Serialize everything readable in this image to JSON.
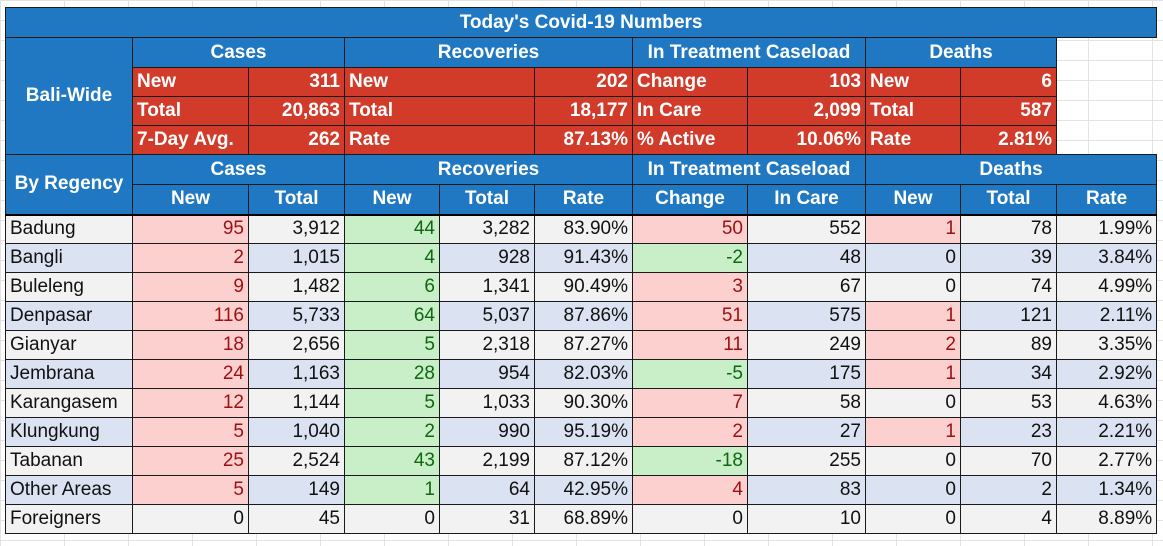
{
  "title": "Today's Covid-19 Numbers",
  "bali_wide": {
    "label": "Bali-Wide",
    "groups": [
      "Cases",
      "Recoveries",
      "In Treatment Caseload",
      "Deaths"
    ],
    "rows": [
      [
        [
          "New",
          "311"
        ],
        [
          "New",
          "202"
        ],
        [
          "Change",
          "103"
        ],
        [
          "New",
          "6"
        ]
      ],
      [
        [
          "Total",
          "20,863"
        ],
        [
          "Total",
          "18,177"
        ],
        [
          "In Care",
          "2,099"
        ],
        [
          "Total",
          "587"
        ]
      ],
      [
        [
          "7-Day Avg.",
          "262"
        ],
        [
          "Rate",
          "87.13%"
        ],
        [
          "% Active",
          "10.06%"
        ],
        [
          "Rate",
          "2.81%"
        ]
      ]
    ]
  },
  "by_regency": {
    "label": "By Regency",
    "groups": [
      "Cases",
      "Recoveries",
      "In Treatment Caseload",
      "Deaths"
    ],
    "columns": [
      "New",
      "Total",
      "New",
      "Total",
      "Rate",
      "Change",
      "In Care",
      "New",
      "Total",
      "Rate"
    ],
    "rows": [
      {
        "name": "Badung",
        "vals": [
          "95",
          "3,912",
          "44",
          "3,282",
          "83.90%",
          "50",
          "552",
          "1",
          "78",
          "1.99%"
        ]
      },
      {
        "name": "Bangli",
        "vals": [
          "2",
          "1,015",
          "4",
          "928",
          "91.43%",
          "-2",
          "48",
          "0",
          "39",
          "3.84%"
        ]
      },
      {
        "name": "Buleleng",
        "vals": [
          "9",
          "1,482",
          "6",
          "1,341",
          "90.49%",
          "3",
          "67",
          "0",
          "74",
          "4.99%"
        ]
      },
      {
        "name": "Denpasar",
        "vals": [
          "116",
          "5,733",
          "64",
          "5,037",
          "87.86%",
          "51",
          "575",
          "1",
          "121",
          "2.11%"
        ]
      },
      {
        "name": "Gianyar",
        "vals": [
          "18",
          "2,656",
          "5",
          "2,318",
          "87.27%",
          "11",
          "249",
          "2",
          "89",
          "3.35%"
        ]
      },
      {
        "name": "Jembrana",
        "vals": [
          "24",
          "1,163",
          "28",
          "954",
          "82.03%",
          "-5",
          "175",
          "1",
          "34",
          "2.92%"
        ]
      },
      {
        "name": "Karangasem",
        "vals": [
          "12",
          "1,144",
          "5",
          "1,033",
          "90.30%",
          "7",
          "58",
          "0",
          "53",
          "4.63%"
        ]
      },
      {
        "name": "Klungkung",
        "vals": [
          "5",
          "1,040",
          "2",
          "990",
          "95.19%",
          "2",
          "27",
          "1",
          "23",
          "2.21%"
        ]
      },
      {
        "name": "Tabanan",
        "vals": [
          "25",
          "2,524",
          "43",
          "2,199",
          "87.12%",
          "-18",
          "255",
          "0",
          "70",
          "2.77%"
        ]
      },
      {
        "name": "Other Areas",
        "vals": [
          "5",
          "149",
          "1",
          "64",
          "42.95%",
          "4",
          "83",
          "0",
          "2",
          "1.34%"
        ]
      },
      {
        "name": "Foreigners",
        "vals": [
          "0",
          "45",
          "0",
          "31",
          "68.89%",
          "0",
          "10",
          "0",
          "4",
          "8.89%"
        ]
      }
    ]
  },
  "colors": {
    "header_blue": "#1f78c1",
    "summary_red": "#d23a2a",
    "increase_pink": "#fdd0d0",
    "decrease_green": "#c8efc8",
    "row_gray": "#f2f2f2",
    "row_blue": "#dbe2f1"
  }
}
